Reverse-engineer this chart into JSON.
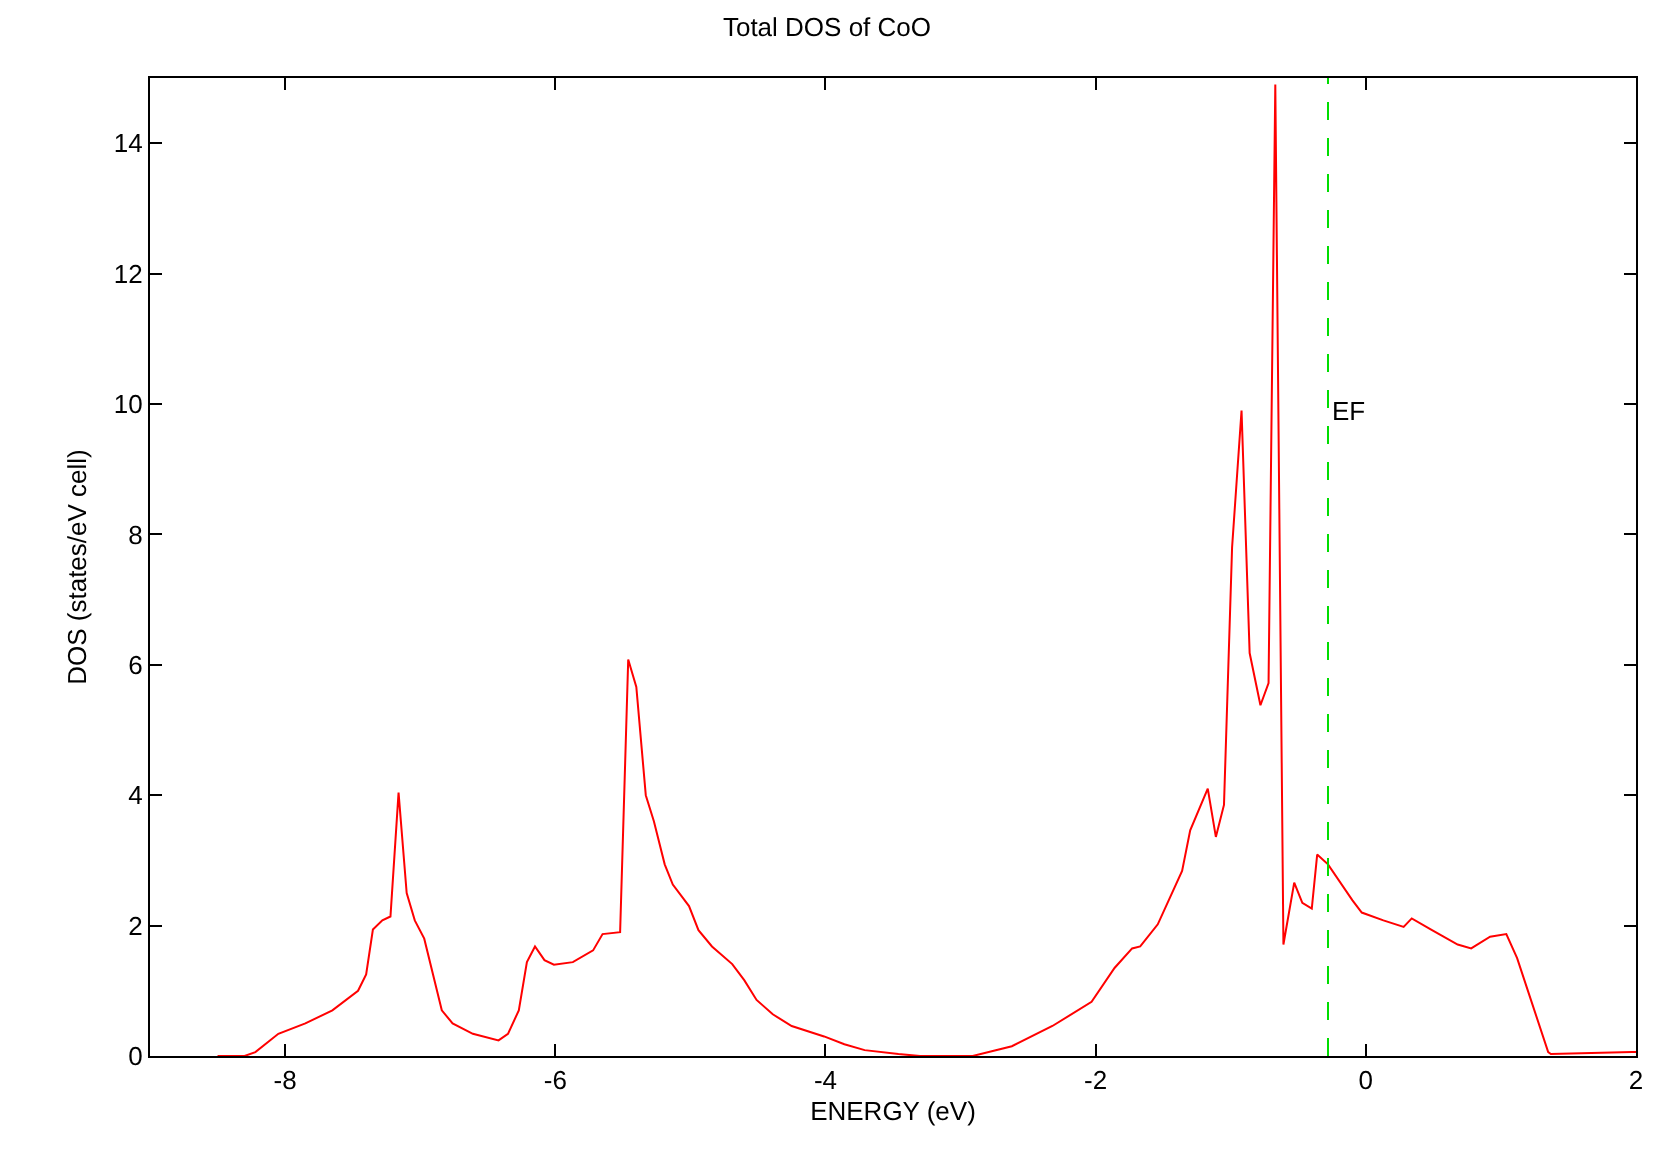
{
  "chart_data": {
    "type": "line",
    "title": "Total DOS of CoO",
    "xlabel": "ENERGY (eV)",
    "ylabel": "DOS (states/eV cell)",
    "series": [
      {
        "color": "#ff0000",
        "x": [
          -8.5,
          -8.3,
          -8.22,
          -8.05,
          -7.85,
          -7.65,
          -7.46,
          -7.4,
          -7.35,
          -7.28,
          -7.22,
          -7.16,
          -7.1,
          -7.04,
          -6.97,
          -6.84,
          -6.76,
          -6.61,
          -6.42,
          -6.35,
          -6.27,
          -6.21,
          -6.15,
          -6.08,
          -6.01,
          -5.87,
          -5.72,
          -5.65,
          -5.52,
          -5.46,
          -5.4,
          -5.33,
          -5.27,
          -5.19,
          -5.13,
          -5.01,
          -4.94,
          -4.84,
          -4.69,
          -4.6,
          -4.51,
          -4.39,
          -4.25,
          -4.01,
          -3.86,
          -3.71,
          -3.46,
          -3.3,
          -2.91,
          -2.62,
          -2.32,
          -2.03,
          -1.86,
          -1.73,
          -1.67,
          -1.54,
          -1.36,
          -1.3,
          -1.17,
          -1.11,
          -1.05,
          -0.99,
          -0.92,
          -0.86,
          -0.78,
          -0.72,
          -0.67,
          -0.61,
          -0.53,
          -0.47,
          -0.4,
          -0.36,
          -0.28,
          -0.1,
          -0.03,
          0.13,
          0.28,
          0.34,
          0.49,
          0.68,
          0.78,
          0.92,
          1.04,
          1.12,
          1.35,
          1.37,
          1.97,
          2.0
        ],
        "values": [
          0,
          0,
          0.06,
          0.34,
          0.5,
          0.7,
          1.0,
          1.25,
          1.94,
          2.08,
          2.14,
          4.04,
          2.5,
          2.08,
          1.8,
          0.7,
          0.5,
          0.34,
          0.24,
          0.34,
          0.7,
          1.44,
          1.68,
          1.47,
          1.4,
          1.44,
          1.62,
          1.87,
          1.9,
          6.08,
          5.66,
          4.0,
          3.6,
          2.94,
          2.63,
          2.3,
          1.93,
          1.68,
          1.41,
          1.16,
          0.86,
          0.64,
          0.46,
          0.3,
          0.18,
          0.09,
          0.03,
          0,
          0,
          0.15,
          0.46,
          0.83,
          1.35,
          1.65,
          1.68,
          2.02,
          2.84,
          3.46,
          4.1,
          3.36,
          3.85,
          7.8,
          9.9,
          6.18,
          5.38,
          5.72,
          14.9,
          1.71,
          2.66,
          2.35,
          2.26,
          3.09,
          2.94,
          2.39,
          2.2,
          2.08,
          1.98,
          2.11,
          1.93,
          1.71,
          1.65,
          1.83,
          1.87,
          1.5,
          0.06,
          0.03,
          0.06,
          0.06
        ]
      }
    ],
    "ref_lines": [
      {
        "axis": "x",
        "value": -0.28,
        "label": "EF",
        "color": "#00dd00",
        "line_style": "dashed"
      }
    ],
    "xlim": [
      -9,
      2
    ],
    "xticks": [
      -8,
      -6,
      -4,
      -2,
      0,
      2
    ],
    "ylim": [
      0,
      15
    ],
    "yticks": [
      0,
      2,
      4,
      6,
      8,
      10,
      12,
      14
    ],
    "grid": false,
    "marker": "none",
    "line_style": "solid"
  }
}
